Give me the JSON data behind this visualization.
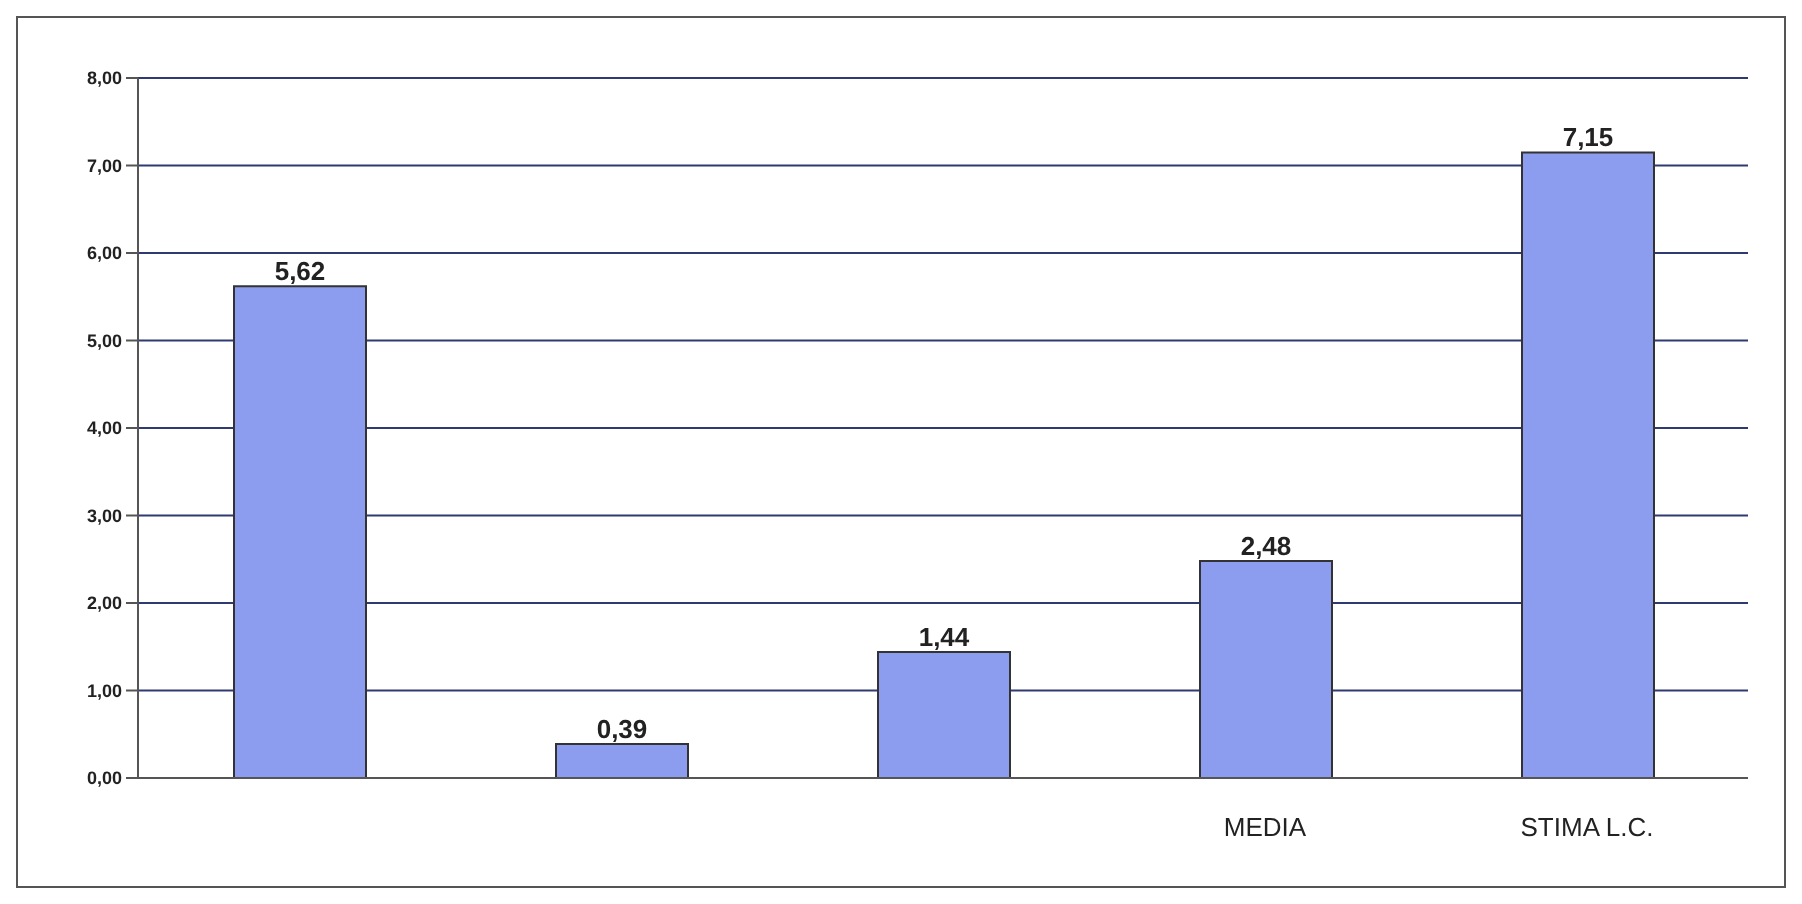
{
  "chart_data": {
    "type": "bar",
    "categories": [
      null,
      null,
      null,
      "MEDIA",
      "STIMA L.C."
    ],
    "values": [
      5.62,
      0.39,
      1.44,
      2.48,
      7.15
    ],
    "value_labels": [
      "5,62",
      "0,39",
      "1,44",
      "2,48",
      "7,15"
    ],
    "color": "#8c9df0",
    "ylim": [
      0,
      8
    ],
    "yticks": [
      {
        "value": 0,
        "label": "0,00"
      },
      {
        "value": 1,
        "label": "1,00"
      },
      {
        "value": 2,
        "label": "2,00"
      },
      {
        "value": 3,
        "label": "3,00"
      },
      {
        "value": 4,
        "label": "4,00"
      },
      {
        "value": 5,
        "label": "5,00"
      },
      {
        "value": 6,
        "label": "6,00"
      },
      {
        "value": 7,
        "label": "7,00"
      },
      {
        "value": 8,
        "label": "8,00"
      }
    ],
    "grid": "y"
  }
}
